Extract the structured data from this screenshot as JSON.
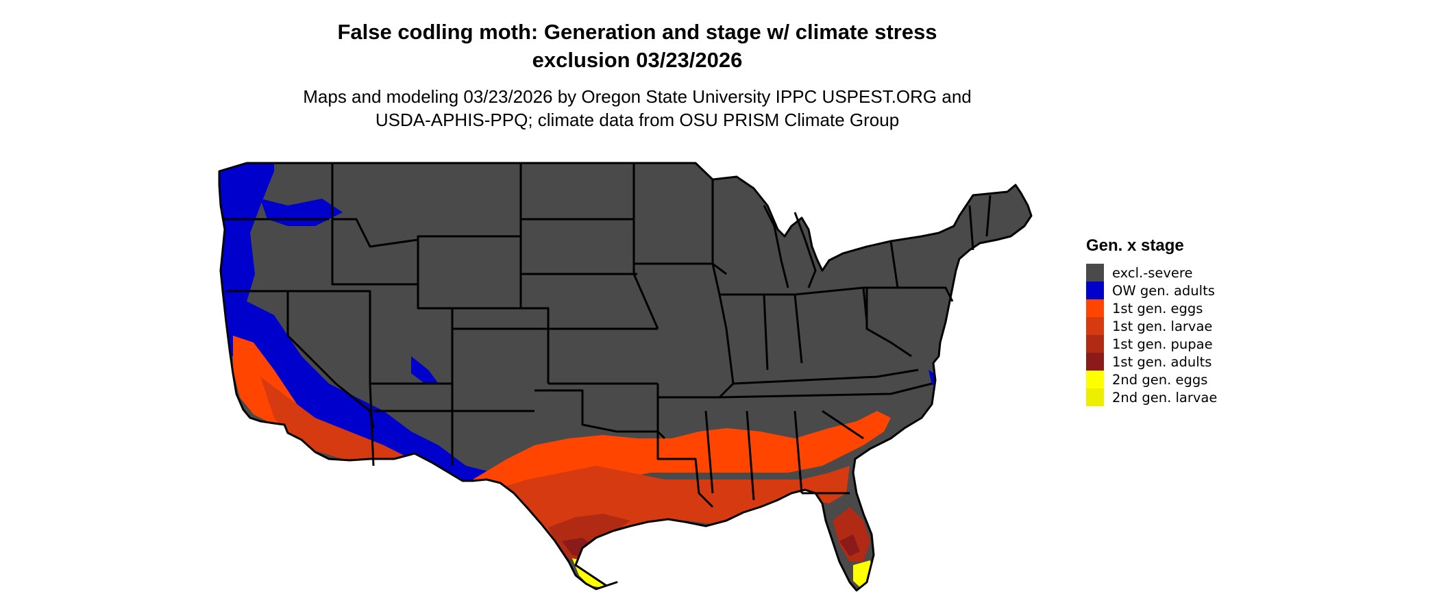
{
  "title": {
    "line1": "False codling moth: Generation and stage w/ climate stress",
    "line2": "exclusion 03/23/2026"
  },
  "subtitle": {
    "line1": "Maps and modeling 03/23/2026 by Oregon State University IPPC USPEST.ORG and",
    "line2": "USDA-APHIS-PPQ; climate data from OSU PRISM Climate Group"
  },
  "legend": {
    "title": "Gen. x stage",
    "items": [
      {
        "label": "excl.-severe",
        "color": "#4a4a4a"
      },
      {
        "label": "OW gen. adults",
        "color": "#0000cc"
      },
      {
        "label": "1st gen. eggs",
        "color": "#ff4500"
      },
      {
        "label": "1st gen. larvae",
        "color": "#d63a10"
      },
      {
        "label": "1st gen. pupae",
        "color": "#b02a14"
      },
      {
        "label": "1st gen. adults",
        "color": "#8b1a1a"
      },
      {
        "label": "2nd gen. eggs",
        "color": "#ffff00"
      },
      {
        "label": "2nd gen. larvae",
        "color": "#eeee00"
      }
    ]
  },
  "map": {
    "region": "Conterminous United States",
    "background_color": "#ffffff",
    "border_color": "#000000"
  }
}
